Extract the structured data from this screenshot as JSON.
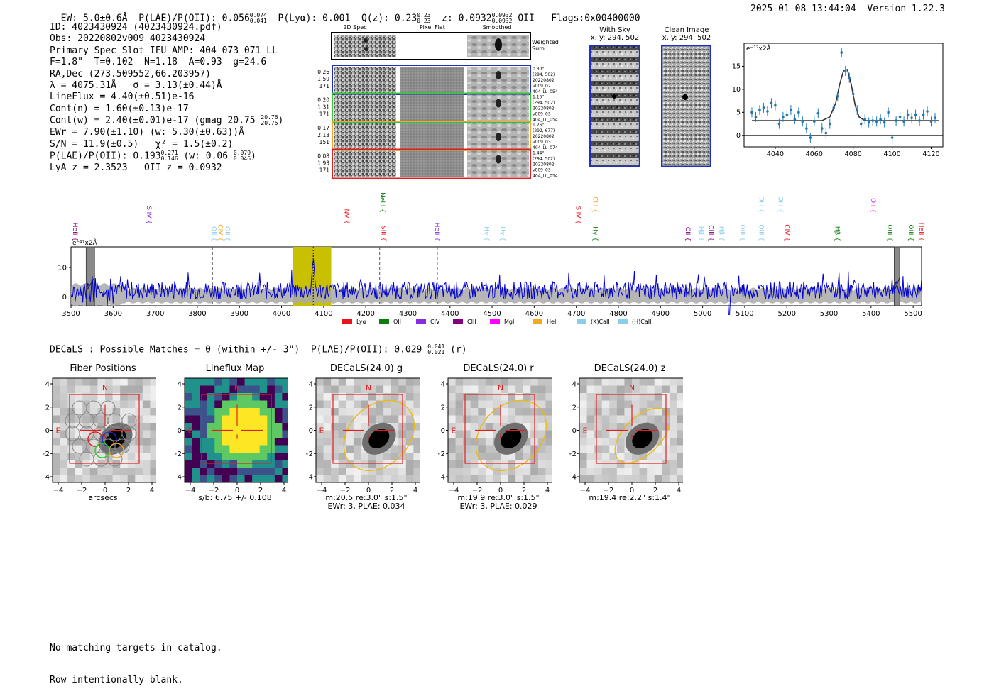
{
  "header": {
    "ew": "EW: 5.0±0.6Å",
    "plae_label": "P(LAE)/P(OII): 0.056",
    "plae_hi": "0.074",
    "plae_lo": "0.041",
    "plya": "P(Lyα): 0.001",
    "q_label": "Q(z): 0.23",
    "q_hi": "0.23",
    "q_lo": "0.23",
    "z_label": "z: 0.0932",
    "z_hi": "0.0932",
    "z_lo": "0.0932",
    "z_line": "OII",
    "flags": "Flags:0x00400000",
    "timestamp": "2025-01-08 13:44:04",
    "version": "Version 1.22.3"
  },
  "info": {
    "id": "ID: 4023430924 (4023430924.pdf)",
    "obs": "Obs: 20220802v009_4023430924",
    "primary": "Primary Spec_Slot_IFU_AMP: 404_073_071_LL",
    "params": "F=1.8\"  T=0.102  N=1.18  A=0.93  g=24.6",
    "radec": "RA,Dec (273.509552,66.203957)",
    "lambda": "λ = 4075.31Å   σ = 3.13(±0.44)Å",
    "lineflux": "LineFlux = 4.40(±0.51)e-16",
    "contn": "Cont(n) = 1.60(±0.13)e-17",
    "contw": "Cont(w) = 2.40(±0.01)e-17 (gmag 20.75",
    "contw_hi": "20.76",
    "contw_lo": "20.75",
    "ewr": "EWr = 7.90(±1.10) (w: 5.30(±0.63))Å",
    "sn": "S/N = 11.9(±0.5)   χ² = 1.5(±0.2)",
    "plae": "P(LAE)/P(OII): 0.193",
    "plae_hi": "0.271",
    "plae_lo": "0.146",
    "plae_w": "(w: 0.06",
    "plae_w_hi": "0.079",
    "plae_w_lo": "0.046",
    "lyaz": "LyA z = 2.3523   OII z = 0.0932"
  },
  "cutouts": {
    "col_2d": "2D Spec",
    "col_flat": "Pixel Flat",
    "col_smooth": "Smoothed",
    "weighted_sum": "Weighted Sum",
    "rows": [
      {
        "n1": "0.26",
        "n2": "1.59",
        "n3": "171",
        "d1": "0.30\"",
        "d2": "(294, 502)",
        "d3": "20220802",
        "d4": "v009_02",
        "d5": "404_LL_054",
        "color": "#1f2fbf"
      },
      {
        "n1": "0.20",
        "n2": "1.31",
        "n3": "171",
        "d1": "1.15\"",
        "d2": "(294, 502)",
        "d3": "20220802",
        "d4": "v009_03",
        "d5": "404_LL_054",
        "color": "#2ecc2e"
      },
      {
        "n1": "0.17",
        "n2": "2.13",
        "n3": "151",
        "d1": "1.26\"",
        "d2": "(292, 677)",
        "d3": "20220802",
        "d4": "v009_03",
        "d5": "404_LL_074",
        "color": "#f5a623"
      },
      {
        "n1": "0.08",
        "n2": "1.93",
        "n3": "171",
        "d1": "1.44\"",
        "d2": "(294, 502)",
        "d3": "20220802",
        "d4": "v009_03",
        "d5": "404_LL_054",
        "color": "#e02020"
      }
    ]
  },
  "sky": {
    "with_sky": "With Sky",
    "with_sky_xy": "x, y: 294, 502",
    "clean": "Clean Image",
    "clean_xy": "x, y: 294, 502"
  },
  "zoom_chart": {
    "unit_label": "e⁻¹⁷x2Å",
    "xticks": [
      "4040",
      "4060",
      "4080",
      "4100",
      "4120"
    ],
    "yticks": [
      "0",
      "5",
      "10",
      "15"
    ]
  },
  "chart_data": [
    {
      "type": "scatter",
      "title": "",
      "ylabel": "e-17 x2Å",
      "xlim": [
        4024,
        4126
      ],
      "ylim": [
        -2.5,
        20
      ],
      "x": [
        4028,
        4030,
        4032,
        4034,
        4036,
        4038,
        4040,
        4042,
        4044,
        4046,
        4048,
        4050,
        4052,
        4054,
        4056,
        4058,
        4060,
        4062,
        4064,
        4066,
        4068,
        4070,
        4072,
        4074,
        4076,
        4078,
        4080,
        4082,
        4084,
        4086,
        4088,
        4090,
        4092,
        4094,
        4096,
        4098,
        4100,
        4102,
        4104,
        4106,
        4108,
        4110,
        4112,
        4114,
        4116,
        4118,
        4120,
        4122
      ],
      "y": [
        5.0,
        4.0,
        5.5,
        6.0,
        5.2,
        7.0,
        6.5,
        2.5,
        4.0,
        4.5,
        5.5,
        3.5,
        5.0,
        3.0,
        1.5,
        -0.5,
        3.0,
        4.8,
        1.5,
        0.5,
        2.5,
        6.0,
        8.5,
        18.0,
        14.0,
        12.5,
        9.0,
        5.5,
        2.5,
        3.5,
        2.8,
        3.2,
        3.0,
        3.5,
        2.8,
        5.0,
        -0.5,
        3.2,
        4.0,
        3.0,
        4.5,
        3.8,
        4.5,
        3.2,
        4.5,
        5.2,
        3.0,
        3.8
      ],
      "fit_x": [
        4028,
        4064,
        4068,
        4071,
        4073,
        4075,
        4077,
        4079,
        4081,
        4083,
        4086,
        4124
      ],
      "fit_y": [
        3.2,
        3.2,
        4.0,
        7.0,
        11.0,
        14.0,
        14.3,
        11.0,
        6.5,
        4.0,
        3.2,
        3.2
      ]
    },
    {
      "type": "line",
      "title": "",
      "xlabel": "",
      "ylabel": "",
      "xlim": [
        3500,
        5520
      ],
      "ylim": [
        -3,
        17
      ],
      "x_ticks": [
        "3500",
        "3600",
        "3700",
        "3800",
        "3900",
        "4000",
        "4100",
        "4200",
        "4300",
        "4400",
        "4500",
        "4600",
        "4700",
        "4800",
        "4900",
        "5000",
        "5100",
        "5200",
        "5300",
        "5400",
        "5500"
      ],
      "y_ticks": [
        "0",
        "10"
      ],
      "highlight_band": [
        4026,
        4118
      ],
      "detected_line": 4075.3,
      "dashed_lines": [
        3836,
        4233,
        4370
      ],
      "masked_bands": [
        [
          3536,
          3556
        ],
        [
          5455,
          5468
        ]
      ],
      "series": [
        {
          "name": "spectrum",
          "color": "#0000d0"
        }
      ],
      "legend": [
        "Lyα",
        "OII",
        "CIV",
        "CIII",
        "MgII",
        "HeII",
        "(K)CaII",
        "(H)CaII"
      ],
      "legend_colors": [
        "#e8141c",
        "#0a7d0a",
        "#8a2be2",
        "#800080",
        "#ff00ff",
        "#f5a623",
        "#87ceeb",
        "#87ceeb"
      ],
      "line_labels": [
        {
          "label": "HeII",
          "wave": 3505,
          "color": "#800080",
          "row": 2
        },
        {
          "label": "SiIV",
          "wave": 3680,
          "color": "#8a2be2",
          "row": 1
        },
        {
          "label": "OII",
          "wave": 3835,
          "color": "#87ceeb",
          "row": 2
        },
        {
          "label": "CIV",
          "wave": 3850,
          "color": "#f5a623",
          "row": 2
        },
        {
          "label": "OII",
          "wave": 3867,
          "color": "#87ceeb",
          "row": 2
        },
        {
          "label": "NeIII",
          "wave": 4235,
          "color": "#0a7d0a",
          "row": 0
        },
        {
          "label": "NV",
          "wave": 4150,
          "color": "#e8141c",
          "row": 1
        },
        {
          "label": "SiII",
          "wave": 4238,
          "color": "#e8141c",
          "row": 2
        },
        {
          "label": "HeII",
          "wave": 4365,
          "color": "#8a2be2",
          "row": 2
        },
        {
          "label": "Hγ",
          "wave": 4482,
          "color": "#87ceeb",
          "row": 2
        },
        {
          "label": "Hγ",
          "wave": 4520,
          "color": "#87ceeb",
          "row": 2
        },
        {
          "label": "SiIV",
          "wave": 4700,
          "color": "#e8141c",
          "row": 1
        },
        {
          "label": "CIII",
          "wave": 4740,
          "color": "#f5a623",
          "row": 0
        },
        {
          "label": "Hγ",
          "wave": 4740,
          "color": "#0a7d0a",
          "row": 2
        },
        {
          "label": "CII",
          "wave": 4960,
          "color": "#800080",
          "row": 2
        },
        {
          "label": "Hβ",
          "wave": 4992,
          "color": "#87ceeb",
          "row": 2
        },
        {
          "label": "CIII",
          "wave": 5015,
          "color": "#800080",
          "row": 2
        },
        {
          "label": "Hβ",
          "wave": 5040,
          "color": "#87ceeb",
          "row": 2
        },
        {
          "label": "OIII",
          "wave": 5090,
          "color": "#87ceeb",
          "row": 2
        },
        {
          "label": "OIII",
          "wave": 5135,
          "color": "#87ceeb",
          "row": 0
        },
        {
          "label": "OIII",
          "wave": 5180,
          "color": "#87ceeb",
          "row": 0
        },
        {
          "label": "OIII",
          "wave": 5135,
          "color": "#87ceeb",
          "row": 2
        },
        {
          "label": "CIV",
          "wave": 5195,
          "color": "#e8141c",
          "row": 2
        },
        {
          "label": "Hβ",
          "wave": 5315,
          "color": "#0a7d0a",
          "row": 2
        },
        {
          "label": "OII",
          "wave": 5400,
          "color": "#ff00ff",
          "row": 0
        },
        {
          "label": "OIII",
          "wave": 5440,
          "color": "#0a7d0a",
          "row": 2
        },
        {
          "label": "OIII",
          "wave": 5490,
          "color": "#0a7d0a",
          "row": 2
        },
        {
          "label": "HeII",
          "wave": 5515,
          "color": "#e8141c",
          "row": 2
        }
      ]
    }
  ],
  "spectrum_unit": "e⁻¹⁷x2Å",
  "decals": {
    "summary": "DECaLS : Possible Matches = 0 (within +/- 3\")  P(LAE)/P(OII): 0.029",
    "summary_hi": "0.041",
    "summary_lo": "0.021",
    "summary_band": "(r)"
  },
  "stamps": [
    {
      "title": "Fiber Positions",
      "cap1": "arcsecs",
      "cap2": ""
    },
    {
      "title": "Lineflux Map",
      "cap1": "s/b: 6.75 +/- 0.108",
      "cap2": ""
    },
    {
      "title": "DECaLS(24.0) g",
      "cap1": "m:20.5  re:3.0\"  s:1.5\"",
      "cap2": "EWr: 3, PLAE: 0.034"
    },
    {
      "title": "DECaLS(24.0) r",
      "cap1": "m:19.9  re:3.0\"  s:1.5\"",
      "cap2": "EWr: 3, PLAE: 0.029"
    },
    {
      "title": "DECaLS(24.0) z",
      "cap1": "m:19.4  re:2.2\"  s:1.4\"",
      "cap2": ""
    }
  ],
  "stamp_axes": {
    "ticks": [
      "−4",
      "−2",
      "0",
      "2",
      "4"
    ],
    "yticks": [
      "4",
      "2",
      "0",
      "−2",
      "−4"
    ],
    "north": "N",
    "east": "E"
  },
  "footer": {
    "line1": "No matching targets in catalog.",
    "line2": "Row intentionally blank."
  }
}
